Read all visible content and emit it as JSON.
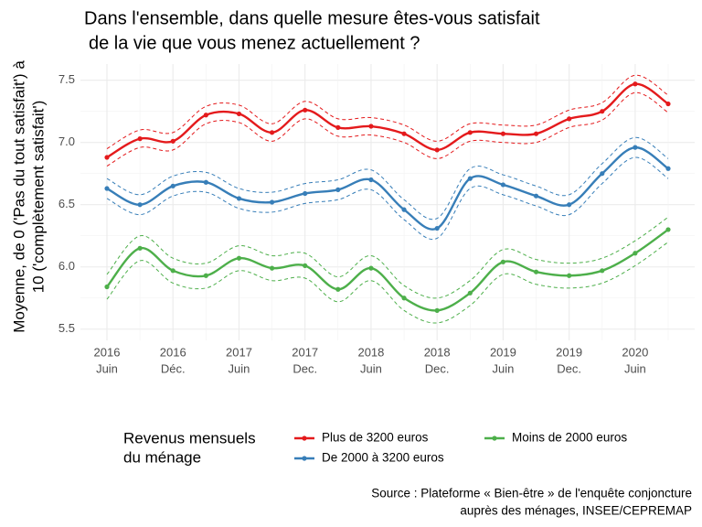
{
  "chart_data": {
    "type": "line",
    "title": [
      "Dans l'ensemble, dans quelle mesure êtes-vous satisfait",
      "de la vie que vous menez actuellement ?"
    ],
    "y_label": [
      "Moyenne, de 0 ('Pas du tout satisfait') à",
      "10 ('complètement satisfait')"
    ],
    "categories": [
      [
        "2016",
        "Juin"
      ],
      null,
      [
        "2016",
        "Déc."
      ],
      null,
      [
        "2017",
        "Juin"
      ],
      null,
      [
        "2017",
        "Dec."
      ],
      null,
      [
        "2018",
        "Juin"
      ],
      null,
      [
        "2018",
        "Dec."
      ],
      null,
      [
        "2019",
        "Juin"
      ],
      null,
      [
        "2019",
        "Dec."
      ],
      null,
      [
        "2020",
        "Juin"
      ],
      null
    ],
    "ylim": [
      5.41,
      7.63
    ],
    "yticks": [
      {
        "value": 5.5,
        "label": "5.5"
      },
      {
        "value": 6,
        "label": "6.0"
      },
      {
        "value": 6.5,
        "label": "6.5"
      },
      {
        "value": 7,
        "label": "7.0"
      },
      {
        "value": 7.5,
        "label": "7.5"
      }
    ],
    "grid": true,
    "legend_title": [
      "Revenus mensuels",
      "du ménage"
    ],
    "series": [
      {
        "name": "Plus de 3200 euros",
        "color": "#e41a1c",
        "values": [
          6.88,
          7.03,
          7.01,
          7.22,
          7.23,
          7.08,
          7.26,
          7.12,
          7.13,
          7.07,
          6.94,
          7.08,
          7.07,
          7.07,
          7.19,
          7.25,
          7.47,
          7.31
        ],
        "upper": [
          6.95,
          7.1,
          7.08,
          7.29,
          7.3,
          7.15,
          7.33,
          7.19,
          7.2,
          7.14,
          7.01,
          7.15,
          7.14,
          7.14,
          7.26,
          7.32,
          7.54,
          7.38
        ],
        "lower": [
          6.81,
          6.96,
          6.94,
          7.15,
          7.16,
          7.01,
          7.19,
          7.05,
          7.06,
          7.0,
          6.87,
          7.01,
          7.0,
          7.0,
          7.12,
          7.18,
          7.4,
          7.24
        ]
      },
      {
        "name": "De 2000 à 3200 euros",
        "color": "#377eb8",
        "values": [
          6.63,
          6.5,
          6.65,
          6.68,
          6.55,
          6.52,
          6.59,
          6.62,
          6.7,
          6.46,
          6.31,
          6.71,
          6.66,
          6.57,
          6.5,
          6.75,
          6.96,
          6.79
        ],
        "upper": [
          6.71,
          6.58,
          6.73,
          6.76,
          6.63,
          6.6,
          6.67,
          6.7,
          6.78,
          6.54,
          6.39,
          6.79,
          6.74,
          6.65,
          6.58,
          6.83,
          7.04,
          6.87
        ],
        "lower": [
          6.55,
          6.42,
          6.57,
          6.6,
          6.47,
          6.44,
          6.51,
          6.54,
          6.62,
          6.38,
          6.23,
          6.63,
          6.58,
          6.49,
          6.42,
          6.67,
          6.88,
          6.71
        ]
      },
      {
        "name": "Moins de 2000 euros",
        "color": "#4daf4a",
        "values": [
          5.84,
          6.15,
          5.97,
          5.93,
          6.07,
          5.99,
          6.01,
          5.82,
          5.99,
          5.75,
          5.65,
          5.79,
          6.04,
          5.96,
          5.93,
          5.97,
          6.11,
          6.3
        ],
        "upper": [
          5.94,
          6.25,
          6.07,
          6.03,
          6.17,
          6.09,
          6.11,
          5.92,
          6.09,
          5.85,
          5.75,
          5.89,
          6.14,
          6.06,
          6.03,
          6.07,
          6.21,
          6.4
        ],
        "lower": [
          5.74,
          6.05,
          5.87,
          5.83,
          5.97,
          5.89,
          5.91,
          5.72,
          5.89,
          5.65,
          5.55,
          5.69,
          5.94,
          5.86,
          5.83,
          5.87,
          6.01,
          6.2
        ]
      }
    ],
    "source": [
      "Source : Plateforme « Bien-être » de l'enquête conjoncture",
      "auprès des ménages, INSEE/CEPREMAP"
    ]
  }
}
